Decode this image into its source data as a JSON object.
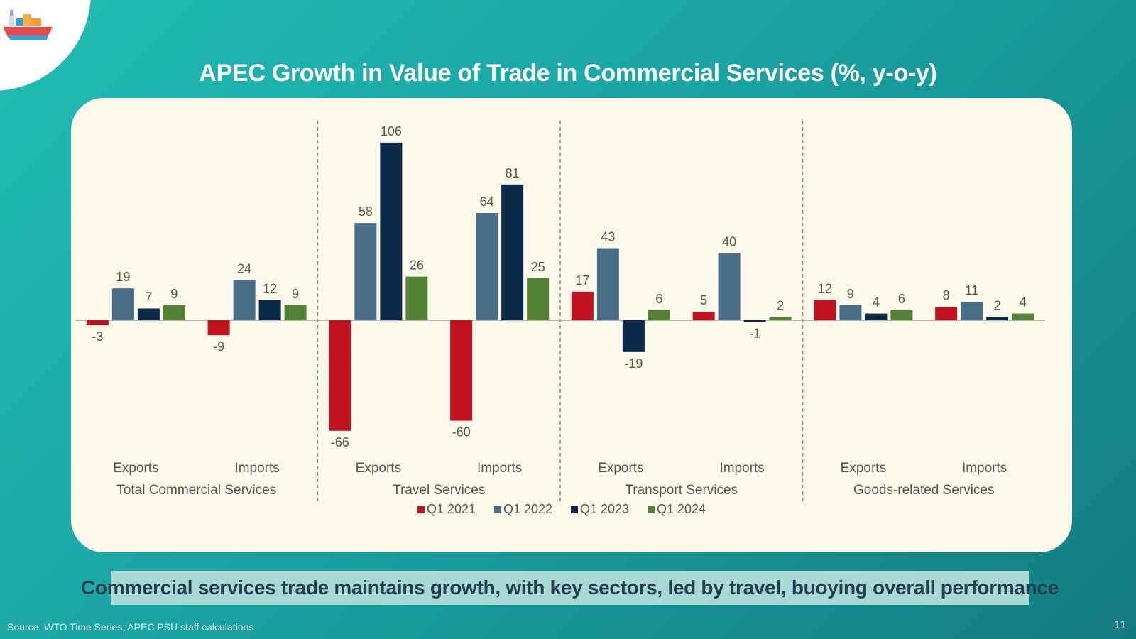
{
  "title": "APEC Growth in Value of Trade in Commercial Services (%, y-o-y)",
  "banner": "Commercial services trade maintains growth, with key sectors, led by travel, buoying overall performance",
  "source": "Source: WTO Time Series; APEC PSU staff calculations",
  "page_number": "11",
  "logo": {
    "icon": "cargo-ship-icon"
  },
  "colors": {
    "background": "#1aa3a3",
    "panel": "#fcf8ea",
    "q1_2021": "#c0121f",
    "q1_2022": "#4a6f89",
    "q1_2023": "#0b2a48",
    "q1_2024": "#528233"
  },
  "chart_data": {
    "type": "bar",
    "title": "APEC Growth in Value of Trade in Commercial Services (%, y-o-y)",
    "ylabel": "",
    "ylim": [
      -70,
      110
    ],
    "grid": false,
    "legend": "bottom",
    "series_names": [
      "Q1 2021",
      "Q1 2022",
      "Q1 2023",
      "Q1 2024"
    ],
    "groups": [
      {
        "name": "Total Commercial Services",
        "subgroups": [
          {
            "label": "Exports",
            "values": [
              -3,
              19,
              7,
              9
            ]
          },
          {
            "label": "Imports",
            "values": [
              -9,
              24,
              12,
              9
            ]
          }
        ]
      },
      {
        "name": "Travel Services",
        "subgroups": [
          {
            "label": "Exports",
            "values": [
              -66,
              58,
              106,
              26
            ]
          },
          {
            "label": "Imports",
            "values": [
              -60,
              64,
              81,
              25
            ]
          }
        ]
      },
      {
        "name": "Transport Services",
        "subgroups": [
          {
            "label": "Exports",
            "values": [
              17,
              43,
              -19,
              6
            ]
          },
          {
            "label": "Imports",
            "values": [
              5,
              40,
              -1,
              2
            ]
          }
        ]
      },
      {
        "name": "Goods-related Services",
        "subgroups": [
          {
            "label": "Exports",
            "values": [
              12,
              9,
              4,
              6
            ]
          },
          {
            "label": "Imports",
            "values": [
              8,
              11,
              2,
              4
            ]
          }
        ]
      }
    ]
  }
}
